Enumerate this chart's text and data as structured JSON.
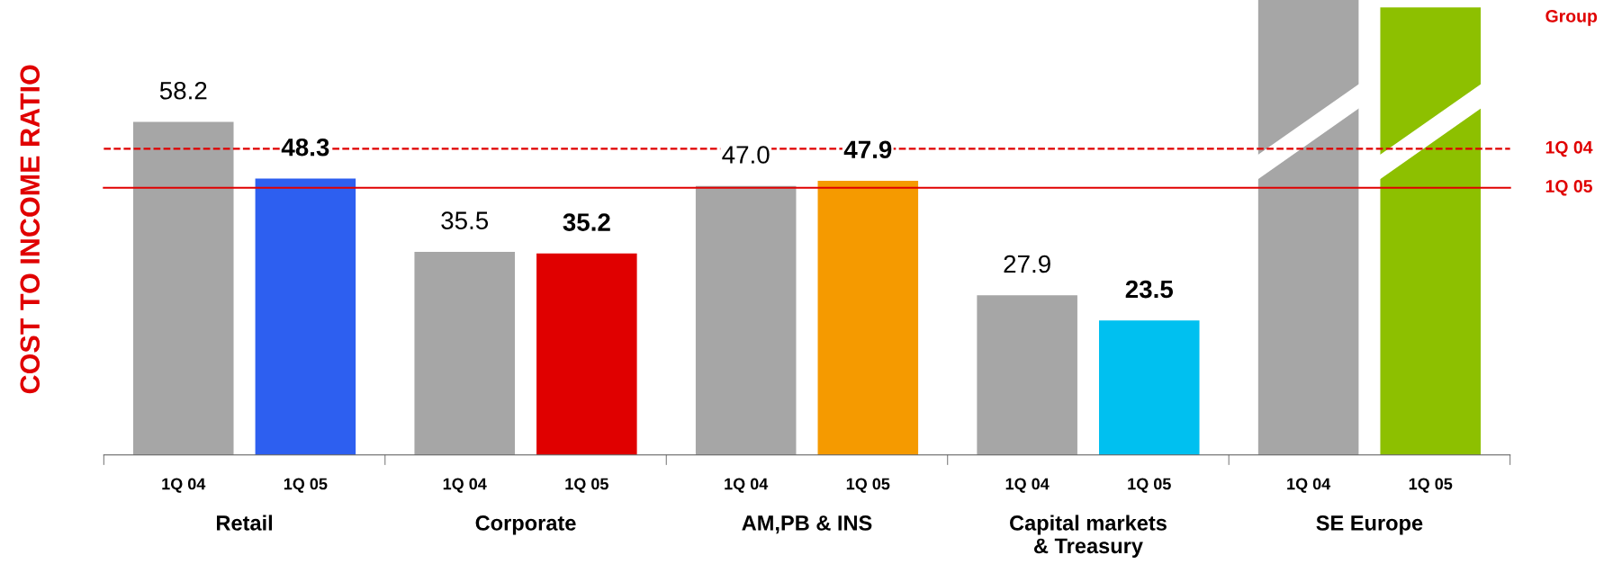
{
  "chart_data": {
    "type": "bar",
    "ylabel": "COST TO INCOME RATIO",
    "categories": [
      "Retail",
      "Corporate",
      "AM,PB & INS",
      "Capital markets\n& Treasury",
      "SE Europe"
    ],
    "series": [
      {
        "name": "1Q 04",
        "colors": [
          "#a6a6a6",
          "#a6a6a6",
          "#a6a6a6",
          "#a6a6a6",
          "#a6a6a6"
        ],
        "values": [
          58.2,
          35.5,
          47.0,
          27.9,
          79.5
        ],
        "value_labels": [
          "58.2",
          "35.5",
          "47.0",
          "27.9",
          null
        ]
      },
      {
        "name": "1Q 05",
        "colors": [
          "#2d5ff0",
          "#e00000",
          "#f59a00",
          "#00c0f0",
          "#8dc000"
        ],
        "values": [
          48.3,
          35.2,
          47.9,
          23.5,
          78.2
        ],
        "value_labels": [
          "48.3",
          "35.2",
          "47.9",
          "23.5",
          null
        ]
      }
    ],
    "ylim": [
      0,
      79.5
    ],
    "tick_labels": "x",
    "grid": false,
    "legend": false,
    "ref_lines": [
      {
        "axis": "y",
        "value": 53.5,
        "label": "1Q 04",
        "color": "#e00000",
        "line_style": "dashed"
      },
      {
        "axis": "y",
        "value": 46.7,
        "label": "1Q 05",
        "color": "#e00000",
        "line_style": "solid"
      }
    ],
    "annotations": [
      "Group"
    ]
  }
}
